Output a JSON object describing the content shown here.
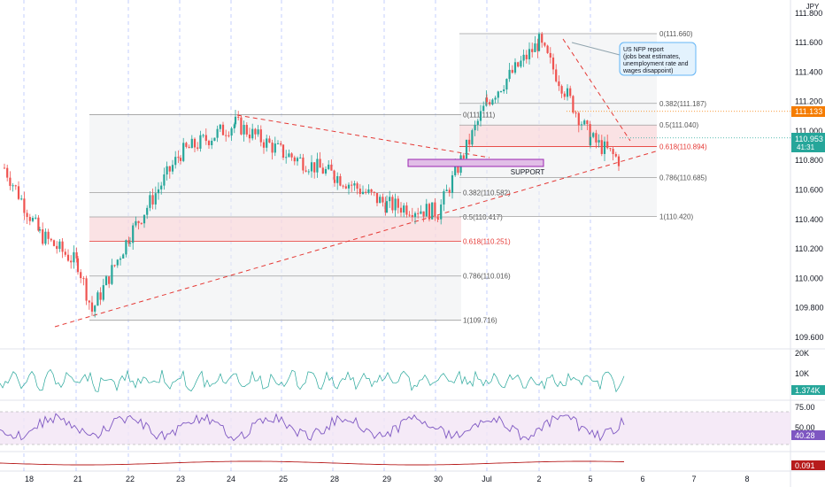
{
  "symbol": {
    "quote_currency": "JPY"
  },
  "price_axis": {
    "ticks": [
      "111.600",
      "111.400",
      "111.200",
      "111.000",
      "110.800",
      "110.600",
      "110.400",
      "110.200",
      "110.000",
      "109.800",
      "109.600"
    ],
    "top_clipped_label": "111.800",
    "ylim": [
      109.55,
      111.83
    ]
  },
  "price_badges": {
    "orange_level": "111.133",
    "current_price": "110.953",
    "countdown": "41:31",
    "volume": "1.374K",
    "rsi": "40.28",
    "third_indicator": "0.091",
    "colors": {
      "orange": "#f57c00",
      "current": "#26a69a",
      "volume": "#26a69a",
      "rsi": "#7e57c2",
      "third": "#b71c1c"
    }
  },
  "date_axis": {
    "labels": [
      "18",
      "21",
      "22",
      "23",
      "24",
      "25",
      "28",
      "29",
      "30",
      "Jul",
      "2",
      "5",
      "6",
      "7",
      "8"
    ]
  },
  "volume_axis": {
    "ticks": [
      "20K",
      "10K"
    ]
  },
  "rsi_axis": {
    "ticks": [
      "75.00",
      "50.00"
    ]
  },
  "fib_left": {
    "levels": [
      {
        "label": "0(111.111)",
        "price": 111.111
      },
      {
        "label": "0.382(110.582)",
        "price": 110.582
      },
      {
        "label": "0.5(110.417)",
        "price": 110.417
      },
      {
        "label": "0.618(110.251)",
        "price": 110.251
      },
      {
        "label": "0.786(110.016)",
        "price": 110.016
      },
      {
        "label": "1(109.716)",
        "price": 109.716
      }
    ]
  },
  "fib_right": {
    "levels": [
      {
        "label": "0(111.660)",
        "price": 111.66
      },
      {
        "label": "0.382(111.187)",
        "price": 111.187
      },
      {
        "label": "0.5(111.040)",
        "price": 111.04
      },
      {
        "label": "0.618(110.894)",
        "price": 110.894
      },
      {
        "label": "0.786(110.685)",
        "price": 110.685
      },
      {
        "label": "1(110.420)",
        "price": 110.42
      }
    ]
  },
  "annotations": {
    "support_label": "SUPPORT",
    "callout_lines": [
      "US NFP report",
      "(jobs beat estimates,",
      "unemployment rate and",
      "wages disappoint)"
    ]
  },
  "chart_data": {
    "type": "candlestick",
    "symbol_currency": "JPY",
    "x_labels": [
      "18",
      "21",
      "22",
      "23",
      "24",
      "25",
      "28",
      "29",
      "30",
      "Jul",
      "2",
      "5",
      "6",
      "7",
      "8"
    ],
    "ylim": [
      109.55,
      111.83
    ],
    "close_path": [
      [
        "18",
        110.75
      ],
      [
        "18",
        110.3
      ],
      [
        "21",
        110.1
      ],
      [
        "21",
        109.78
      ],
      [
        "22",
        110.3
      ],
      [
        "23",
        110.85
      ],
      [
        "24",
        111.05
      ],
      [
        "25",
        110.85
      ],
      [
        "28",
        110.7
      ],
      [
        "29",
        110.5
      ],
      [
        "30",
        110.45
      ],
      [
        "Jul",
        111.2
      ],
      [
        "2",
        111.6
      ],
      [
        "5",
        110.95
      ],
      [
        "5",
        110.8
      ]
    ],
    "current_price": 110.953,
    "indicators": {
      "volume_last": "1.374K",
      "rsi_last": 40.28,
      "rsi_band": [
        30,
        70
      ],
      "third_last": 0.091
    },
    "colors": {
      "up": "#26a69a",
      "down": "#ef5350",
      "trend": "#e53935",
      "support": "#ab47bc"
    }
  }
}
